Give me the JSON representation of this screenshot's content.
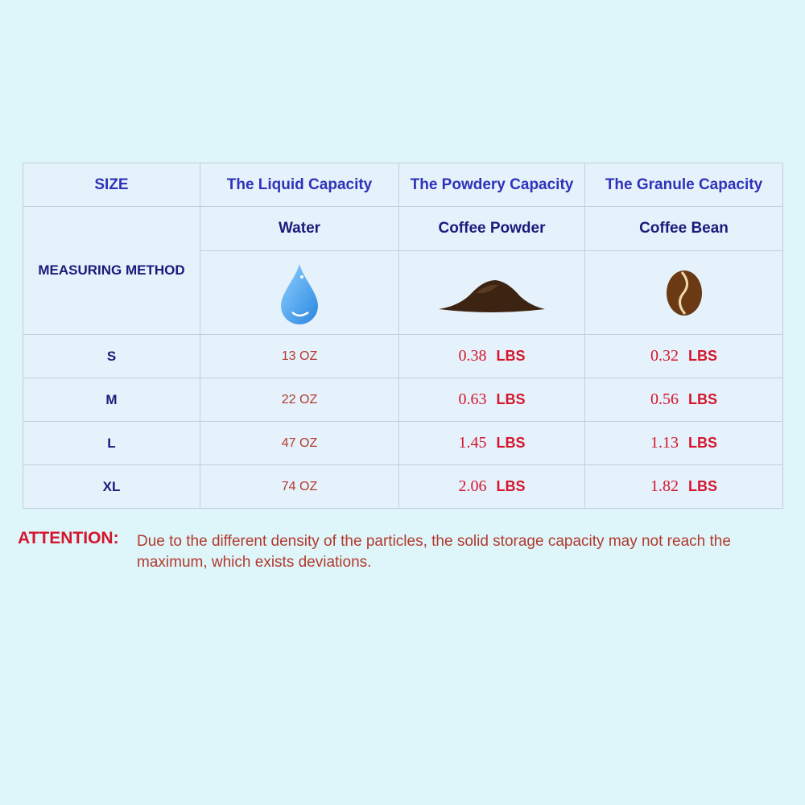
{
  "header": {
    "size": "SIZE",
    "liquid": "The Liquid Capacity",
    "powdery": "The Powdery Capacity",
    "granule": "The  Granule Capacity"
  },
  "method": {
    "label": "MEASURING METHOD",
    "water": "Water",
    "powder": "Coffee Powder",
    "bean": "Coffee  Bean",
    "icons": [
      "water-drop-icon",
      "coffee-powder-icon",
      "coffee-bean-icon"
    ]
  },
  "rows": [
    {
      "size": "S",
      "liquid": "13 OZ",
      "powder": "0.38",
      "bean": "0.32"
    },
    {
      "size": "M",
      "liquid": "22 OZ",
      "powder": "0.63",
      "bean": "0.56"
    },
    {
      "size": "L",
      "liquid": "47 OZ",
      "powder": "1.45",
      "bean": "1.13"
    },
    {
      "size": "XL",
      "liquid": "74 OZ",
      "powder": "2.06",
      "bean": "1.82"
    }
  ],
  "unit": "LBS",
  "attention": {
    "label": "ATTENTION:",
    "text": "Due to the different density of the particles, the solid storage capacity may not reach the maximum, which exists deviations."
  },
  "colors": {
    "background": "#def5f9",
    "header": "#2f32b8",
    "accent": "#d4162d"
  }
}
